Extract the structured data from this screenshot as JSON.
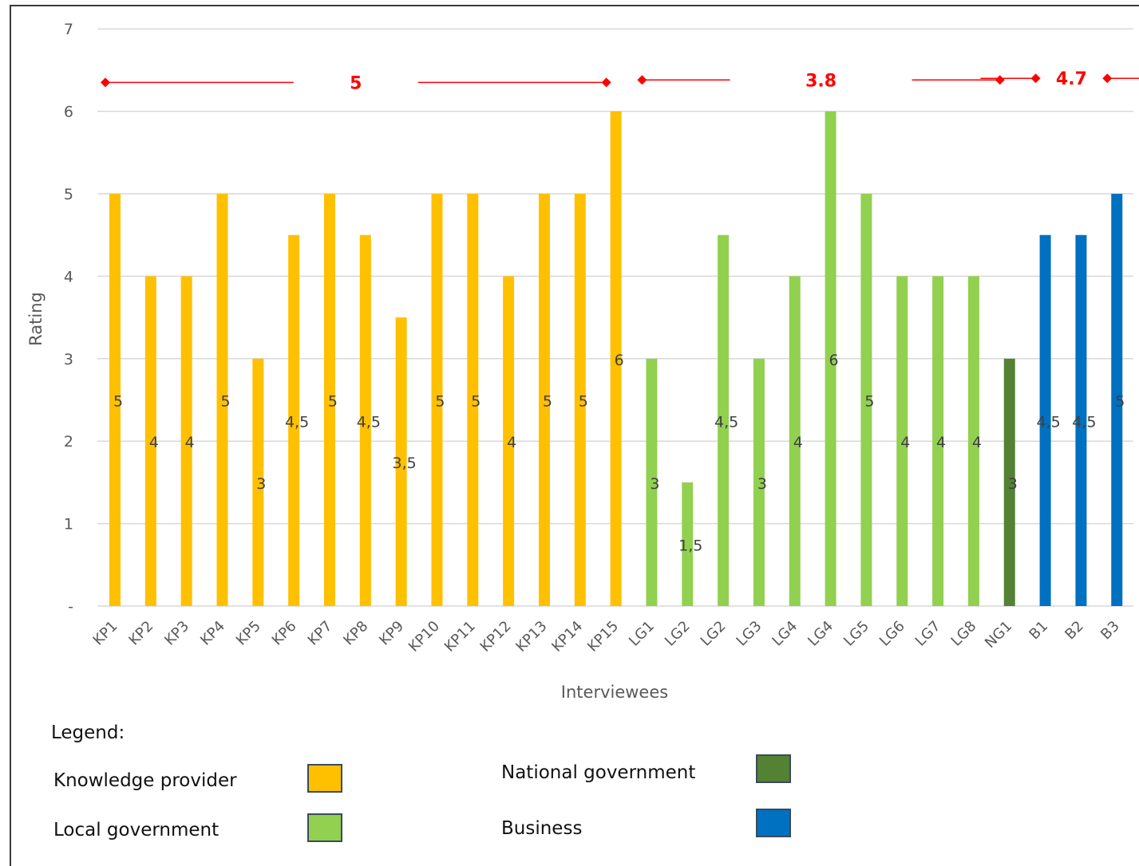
{
  "chart_data": {
    "type": "bar",
    "xlabel": "Interviewees",
    "ylabel": "Rating",
    "ylim": [
      0,
      7
    ],
    "yticks": [
      "-",
      "1",
      "2",
      "3",
      "4",
      "5",
      "6",
      "7"
    ],
    "grid": true,
    "categories": [
      "KP1",
      "KP2",
      "KP3",
      "KP4",
      "KP5",
      "KP6",
      "KP7",
      "KP8",
      "KP9",
      "KP10",
      "KP11",
      "KP12",
      "KP13",
      "KP14",
      "KP15",
      "LG1",
      "LG2",
      "LG2",
      "LG3",
      "LG4",
      "LG4",
      "LG5",
      "LG6",
      "LG7",
      "LG8",
      "NG1",
      "B1",
      "B2",
      "B3"
    ],
    "values": [
      5,
      4,
      4,
      5,
      3,
      4.5,
      5,
      4.5,
      3.5,
      5,
      5,
      4,
      5,
      5,
      6,
      3,
      1.5,
      4.5,
      3,
      4,
      6,
      5,
      4,
      4,
      4,
      3,
      4.5,
      4.5,
      5
    ],
    "value_labels": [
      "5",
      "4",
      "4",
      "5",
      "3",
      "4,5",
      "5",
      "4,5",
      "3,5",
      "5",
      "5",
      "4",
      "5",
      "5",
      "6",
      "3",
      "1,5",
      "4,5",
      "3",
      "4",
      "6",
      "5",
      "4",
      "4",
      "4",
      "3",
      "4,5",
      "4,5",
      "5"
    ],
    "groups": [
      "KP",
      "KP",
      "KP",
      "KP",
      "KP",
      "KP",
      "KP",
      "KP",
      "KP",
      "KP",
      "KP",
      "KP",
      "KP",
      "KP",
      "KP",
      "LG",
      "LG",
      "LG",
      "LG",
      "LG",
      "LG",
      "LG",
      "LG",
      "LG",
      "LG",
      "NG",
      "B",
      "B",
      "B"
    ],
    "group_colors": {
      "KP": "#ffc000",
      "LG": "#92d050",
      "NG": "#548235",
      "B": "#0070c0"
    },
    "averages": [
      {
        "label": "5",
        "from": 0,
        "to": 14,
        "value": 6.35
      },
      {
        "label": "3.8",
        "from": 15,
        "to": 25,
        "value": 6.38
      },
      {
        "label": "4.7",
        "from": 26,
        "to": 28,
        "value": 6.4
      }
    ],
    "average_color": "#ff0000"
  },
  "legend": {
    "title": "Legend:",
    "items": [
      {
        "label": "Knowledge provider",
        "color": "#ffc000"
      },
      {
        "label": "Local government",
        "color": "#92d050"
      },
      {
        "label": "National government",
        "color": "#548235"
      },
      {
        "label": "Business",
        "color": "#0070c0"
      }
    ]
  }
}
